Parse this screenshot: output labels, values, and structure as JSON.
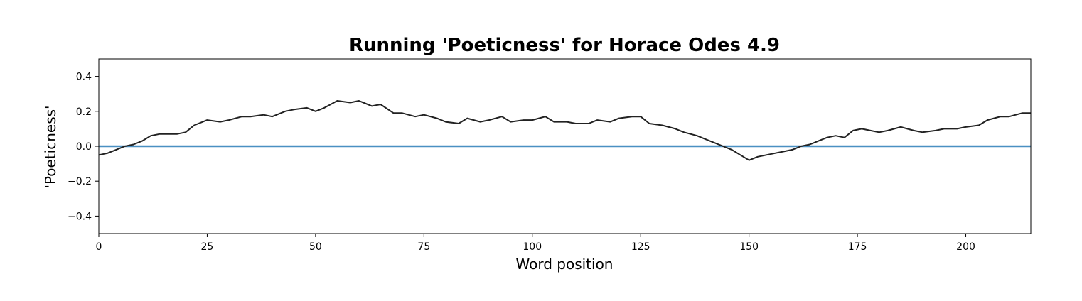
{
  "chart_data": {
    "type": "line",
    "title": "Running 'Poeticness' for Horace Odes 4.9",
    "xlabel": "Word position",
    "ylabel": "'Poeticness'",
    "xlim": [
      0,
      215
    ],
    "ylim": [
      -0.5,
      0.5
    ],
    "xticks": [
      0,
      25,
      50,
      75,
      100,
      125,
      150,
      175,
      200
    ],
    "yticks": [
      -0.4,
      -0.2,
      0.0,
      0.2,
      0.4
    ],
    "xtick_labels": [
      "0",
      "25",
      "50",
      "75",
      "100",
      "125",
      "150",
      "175",
      "200"
    ],
    "ytick_labels": [
      "−0.4",
      "−0.2",
      "0.0",
      "0.2",
      "0.4"
    ],
    "grid": false,
    "reference_line": {
      "y": 0.0,
      "color": "#4a90c2"
    },
    "series": [
      {
        "color": "#222222",
        "x": [
          0,
          2,
          4,
          6,
          8,
          10,
          12,
          14,
          16,
          18,
          20,
          22,
          25,
          28,
          30,
          33,
          35,
          38,
          40,
          43,
          45,
          48,
          50,
          52,
          55,
          58,
          60,
          63,
          65,
          68,
          70,
          73,
          75,
          78,
          80,
          83,
          85,
          88,
          90,
          93,
          95,
          98,
          100,
          103,
          105,
          108,
          110,
          113,
          115,
          118,
          120,
          123,
          125,
          127,
          130,
          133,
          135,
          138,
          140,
          142,
          144,
          146,
          148,
          150,
          152,
          154,
          156,
          158,
          160,
          162,
          164,
          166,
          168,
          170,
          172,
          174,
          176,
          178,
          180,
          182,
          185,
          188,
          190,
          193,
          195,
          198,
          200,
          203,
          205,
          208,
          210,
          213,
          215
        ],
        "y": [
          -0.05,
          -0.04,
          -0.02,
          0.0,
          0.01,
          0.03,
          0.06,
          0.07,
          0.07,
          0.07,
          0.08,
          0.12,
          0.15,
          0.14,
          0.15,
          0.17,
          0.17,
          0.18,
          0.17,
          0.2,
          0.21,
          0.22,
          0.2,
          0.22,
          0.26,
          0.25,
          0.26,
          0.23,
          0.24,
          0.19,
          0.19,
          0.17,
          0.18,
          0.16,
          0.14,
          0.13,
          0.16,
          0.14,
          0.15,
          0.17,
          0.14,
          0.15,
          0.15,
          0.17,
          0.14,
          0.14,
          0.13,
          0.13,
          0.15,
          0.14,
          0.16,
          0.17,
          0.17,
          0.13,
          0.12,
          0.1,
          0.08,
          0.06,
          0.04,
          0.02,
          0.0,
          -0.02,
          -0.05,
          -0.08,
          -0.06,
          -0.05,
          -0.04,
          -0.03,
          -0.02,
          0.0,
          0.01,
          0.03,
          0.05,
          0.06,
          0.05,
          0.09,
          0.1,
          0.09,
          0.08,
          0.09,
          0.11,
          0.09,
          0.08,
          0.09,
          0.1,
          0.1,
          0.11,
          0.12,
          0.15,
          0.17,
          0.17,
          0.19,
          0.19
        ]
      }
    ]
  }
}
